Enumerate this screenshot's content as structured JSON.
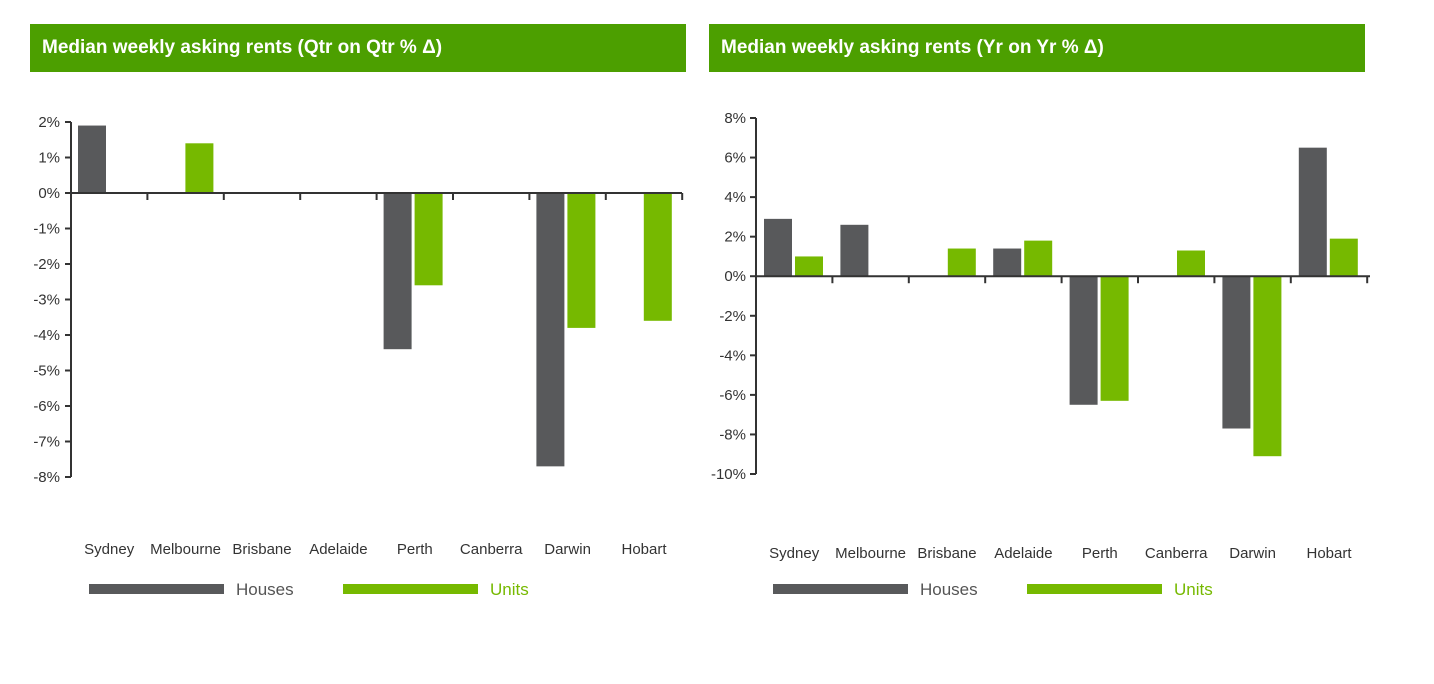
{
  "colors": {
    "title_bg": "#4c9f00",
    "houses": "#58595b",
    "units": "#76b900",
    "axis": "#333333"
  },
  "chart_data": [
    {
      "type": "bar",
      "title": "Median weekly asking rents  (Qtr on Qtr % Δ)",
      "categories": [
        "Sydney",
        "Melbourne",
        "Brisbane",
        "Adelaide",
        "Perth",
        "Canberra",
        "Darwin",
        "Hobart"
      ],
      "series": [
        {
          "name": "Houses",
          "values": [
            1.9,
            0,
            0,
            0,
            -4.4,
            0,
            -7.7,
            0
          ]
        },
        {
          "name": "Units",
          "values": [
            0,
            1.4,
            0,
            0,
            -2.6,
            0,
            -3.8,
            -3.6
          ]
        }
      ],
      "ylim": [
        -8,
        2
      ],
      "yticks": [
        2,
        1,
        0,
        -1,
        -2,
        -3,
        -4,
        -5,
        -6,
        -7,
        -8
      ],
      "ytick_labels": [
        "2%",
        "1%",
        "0%",
        "-1%",
        "-2%",
        "-3%",
        "-4%",
        "-5%",
        "-6%",
        "-7%",
        "-8%"
      ],
      "legend": "bottom-left",
      "grid": false
    },
    {
      "type": "bar",
      "title": "Median weekly asking rents  (Yr on Yr % Δ)",
      "categories": [
        "Sydney",
        "Melbourne",
        "Brisbane",
        "Adelaide",
        "Perth",
        "Canberra",
        "Darwin",
        "Hobart"
      ],
      "series": [
        {
          "name": "Houses",
          "values": [
            2.9,
            2.6,
            0,
            1.4,
            -6.5,
            0,
            -7.7,
            6.5
          ]
        },
        {
          "name": "Units",
          "values": [
            1.0,
            0,
            1.4,
            1.8,
            -6.3,
            1.3,
            -9.1,
            1.9
          ]
        }
      ],
      "ylim": [
        -10,
        8
      ],
      "yticks": [
        8,
        6,
        4,
        2,
        0,
        -2,
        -4,
        -6,
        -8,
        -10
      ],
      "ytick_labels": [
        "8%",
        "6%",
        "4%",
        "2%",
        "0%",
        "-2%",
        "-4%",
        "-6%",
        "-8%",
        "-10%"
      ],
      "legend": "bottom-left",
      "grid": false
    }
  ]
}
